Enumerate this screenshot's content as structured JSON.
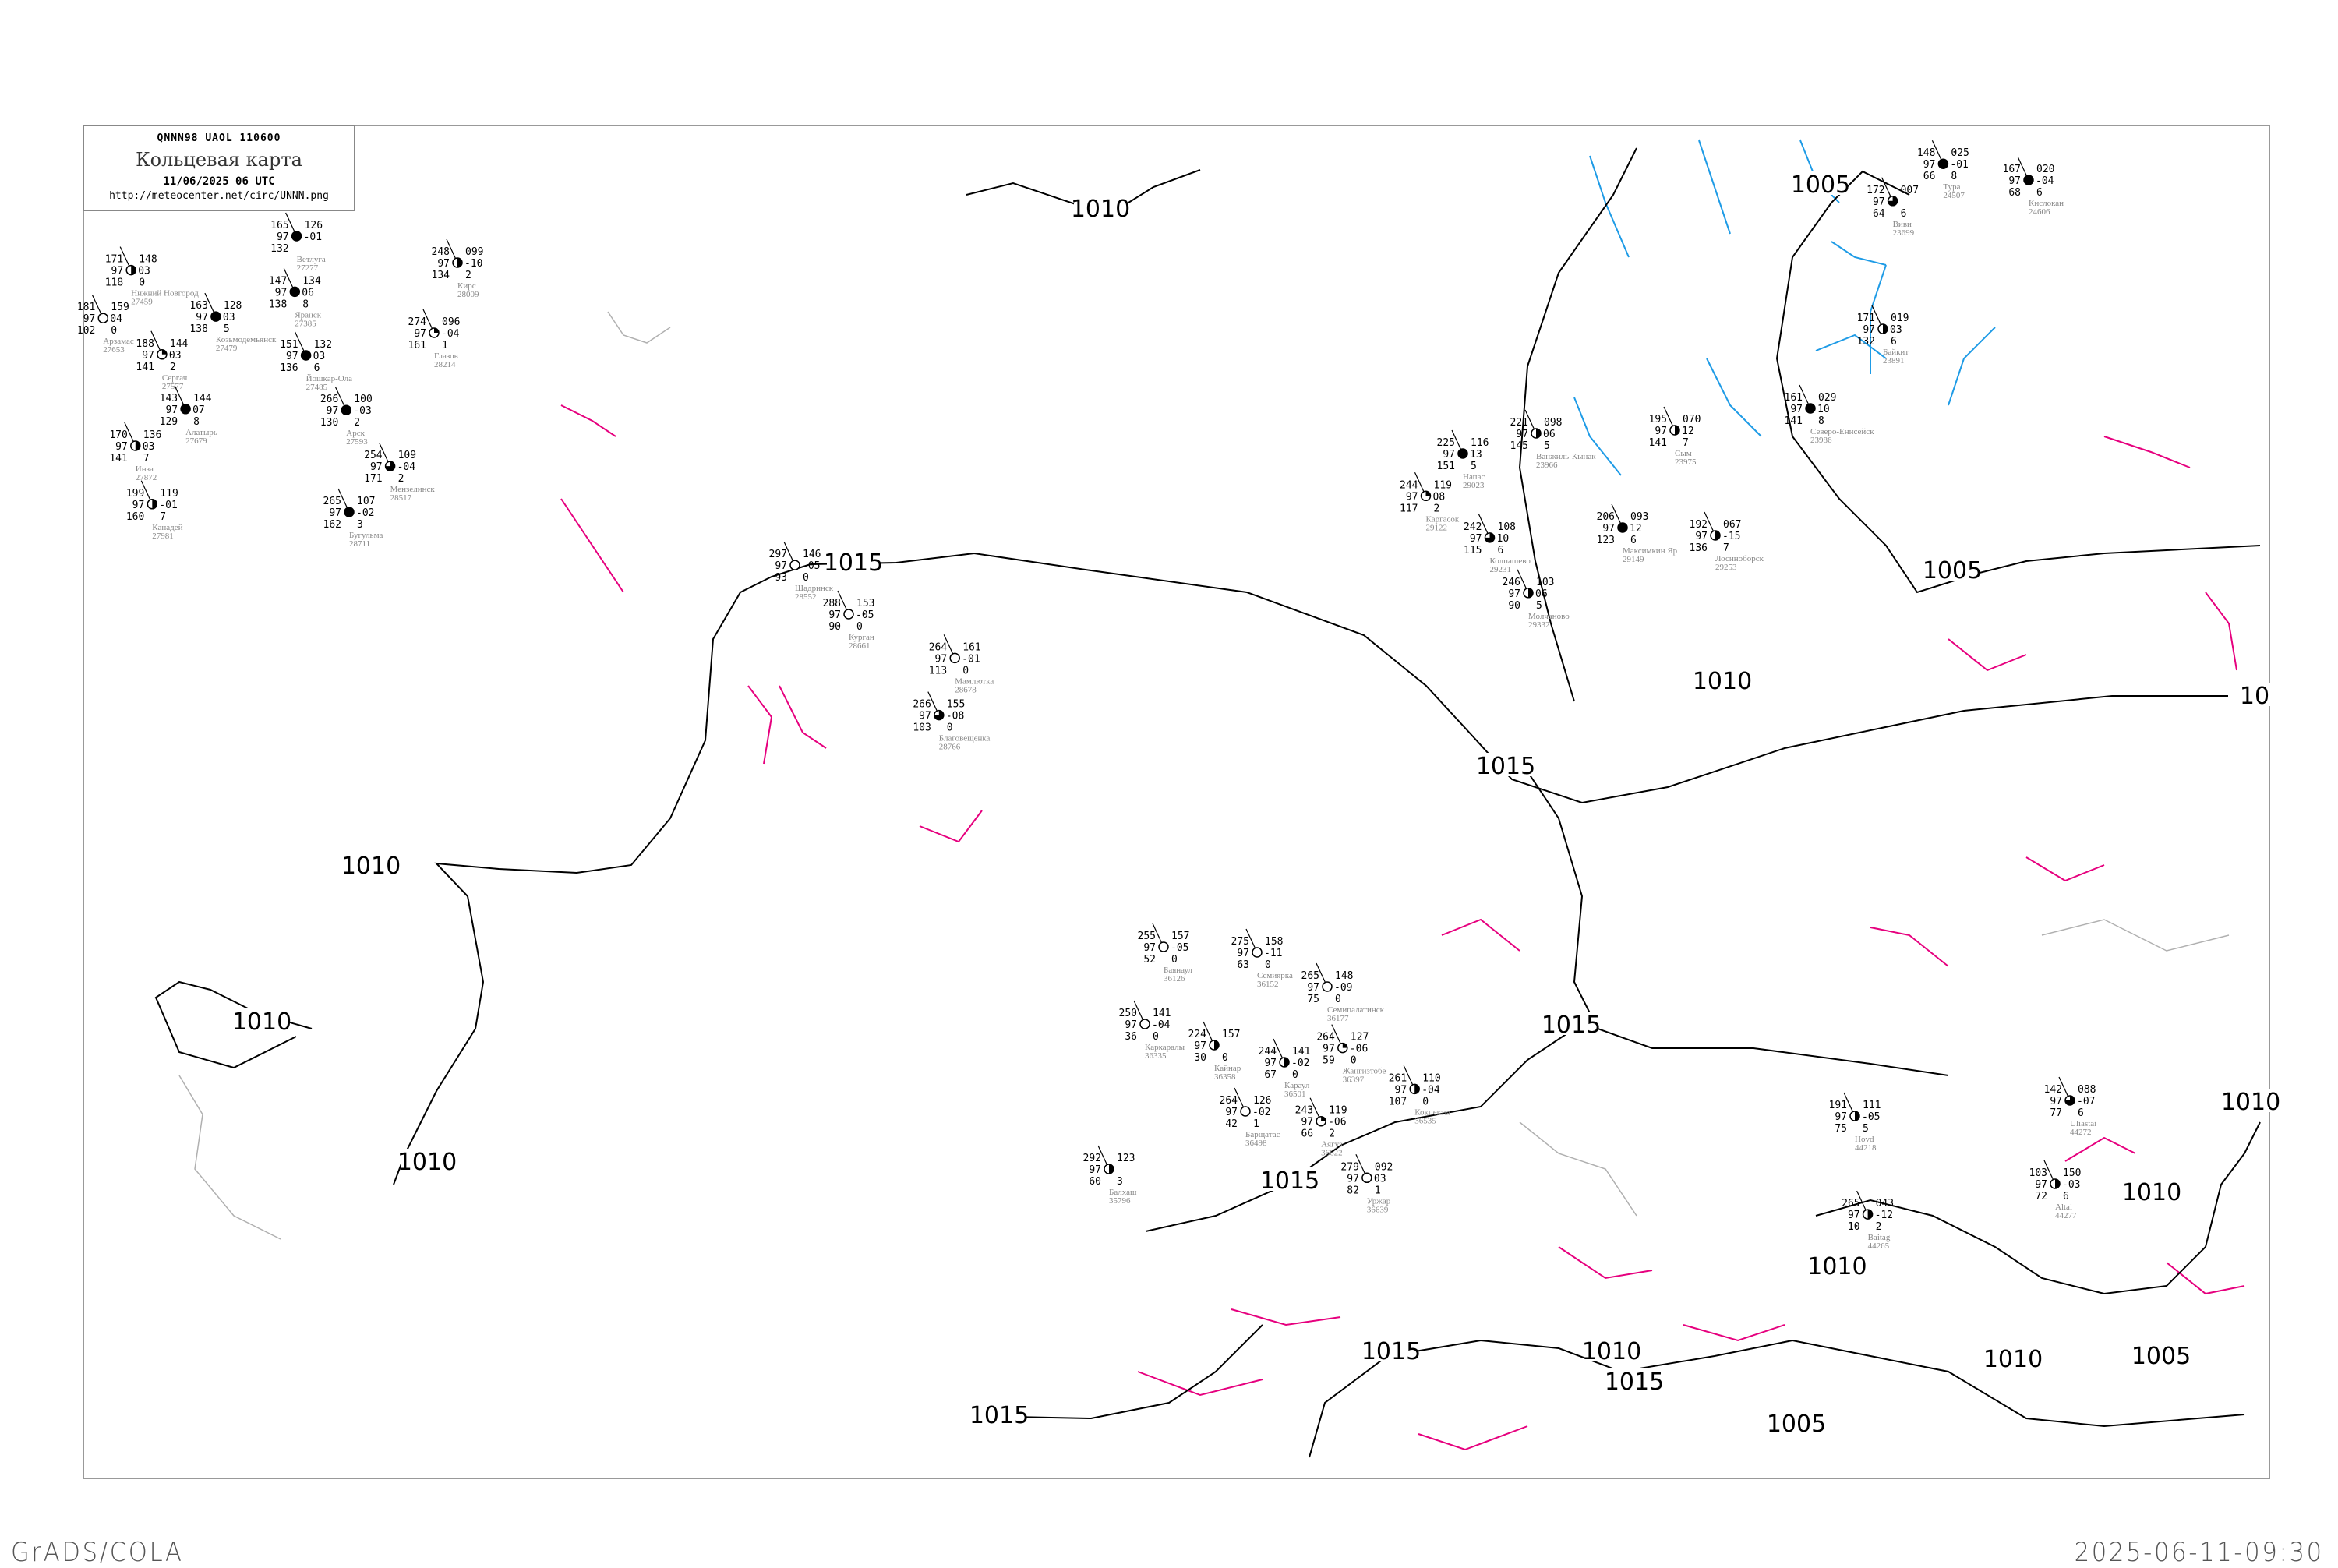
{
  "header": {
    "code": "QNNN98   UAOL   110600",
    "title": "Кольцевая карта",
    "datetime": "11/06/2025 06 UTC",
    "url": "http://meteocenter.net/circ/UNNN.png"
  },
  "footer": {
    "left": "GrADS/COLA",
    "right": "2025-06-11-09:30"
  },
  "colors": {
    "isobar": "#000000",
    "isallobar": "#e6007e",
    "front_blue": "#1e9be6",
    "coastline": "#b0b0b0",
    "station_name": "#888888",
    "precip_green": "#00c040",
    "precip_red": "#ff3366"
  },
  "isobar_labels": [
    "1010",
    "1005",
    "1015",
    "1010",
    "1010",
    "1010",
    "1015",
    "1015",
    "1015",
    "1015",
    "1010",
    "1015",
    "1005",
    "1010",
    "1010",
    "1005",
    "1010",
    "1010",
    "1005",
    "1010",
    "1015",
    "10"
  ],
  "stations": [
    {
      "name": "Шадринск",
      "id": "28552",
      "tl": "297",
      "ml": "97",
      "bl": "93",
      "tr": "146",
      "mr": "-05",
      "br": "0",
      "cover": 0
    },
    {
      "name": "Курган",
      "id": "28661",
      "tl": "288",
      "ml": "97",
      "bl": "90",
      "tr": "153",
      "mr": "-05",
      "br": "0",
      "cover": 0
    },
    {
      "name": "Мамлютка",
      "id": "28678",
      "tl": "264",
      "ml": "97",
      "bl": "113",
      "tr": "161",
      "mr": "-01",
      "br": "0",
      "cover": 0
    },
    {
      "name": "Благовещенка",
      "id": "28766",
      "tl": "266",
      "ml": "97",
      "bl": "103",
      "tr": "155",
      "mr": "-08",
      "br": "0",
      "cover": 0.75
    },
    {
      "name": "Тура",
      "id": "24507",
      "tl": "148",
      "ml": "97",
      "bl": "66",
      "tr": "025",
      "mr": "-01",
      "br": "8",
      "cover": 1
    },
    {
      "name": "Кислокан",
      "id": "24606",
      "tl": "167",
      "ml": "97",
      "bl": "68",
      "tr": "020",
      "mr": "-04",
      "br": "6",
      "cover": 1
    },
    {
      "name": "Виви",
      "id": "23699",
      "tl": "172",
      "ml": "97",
      "bl": "64",
      "tr": "007",
      "mr": "",
      "br": "6",
      "cover": 0.75
    },
    {
      "name": "Байкит",
      "id": "23891",
      "tl": "171",
      "ml": "97",
      "bl": "132",
      "tr": "019",
      "mr": "03",
      "br": "6",
      "cover": 0.5
    },
    {
      "name": "Северо-Енисейск",
      "id": "23986",
      "tl": "161",
      "ml": "97",
      "bl": "141",
      "tr": "029",
      "mr": "10",
      "br": "8",
      "cover": 1
    },
    {
      "name": "Ветлуга",
      "id": "27277",
      "tl": "165",
      "ml": "97",
      "bl": "132",
      "tr": "126",
      "mr": "-01",
      "br": "",
      "cover": 1
    },
    {
      "name": "Нижний Новгород",
      "id": "27459",
      "tl": "171",
      "ml": "97",
      "bl": "118",
      "tr": "148",
      "mr": "03",
      "br": "0",
      "cover": 0.5
    },
    {
      "name": "Арзамас",
      "id": "27653",
      "tl": "181",
      "ml": "97",
      "bl": "102",
      "tr": "159",
      "mr": "04",
      "br": "0",
      "cover": 0
    },
    {
      "name": "Сергач",
      "id": "27577",
      "tl": "188",
      "ml": "97",
      "bl": "141",
      "tr": "144",
      "mr": "03",
      "br": "2",
      "cover": 0.25
    },
    {
      "name": "Козьмодемьянск",
      "id": "27479",
      "tl": "163",
      "ml": "97",
      "bl": "138",
      "tr": "128",
      "mr": "03",
      "br": "5",
      "cover": 1
    },
    {
      "name": "Йошкар-Ола",
      "id": "27485",
      "tl": "151",
      "ml": "97",
      "bl": "136",
      "tr": "132",
      "mr": "03",
      "br": "6",
      "cover": 1
    },
    {
      "name": "Яранск",
      "id": "27385",
      "tl": "147",
      "ml": "97",
      "bl": "138",
      "tr": "134",
      "mr": "06",
      "br": "8",
      "cover": 1
    },
    {
      "name": "Алатырь",
      "id": "27679",
      "tl": "143",
      "ml": "97",
      "bl": "129",
      "tr": "144",
      "mr": "07",
      "br": "8",
      "cover": 1
    },
    {
      "name": "Инза",
      "id": "27872",
      "tl": "170",
      "ml": "97",
      "bl": "141",
      "tr": "136",
      "mr": "03",
      "br": "7",
      "cover": 0.5
    },
    {
      "name": "Канадей",
      "id": "27981",
      "tl": "199",
      "ml": "97",
      "bl": "160",
      "tr": "119",
      "mr": "-01",
      "br": "7",
      "cover": 0.5
    },
    {
      "name": "Глазов",
      "id": "28214",
      "tl": "274",
      "ml": "97",
      "bl": "161",
      "tr": "096",
      "mr": "-04",
      "br": "1",
      "cover": 0.25
    },
    {
      "name": "Кирс",
      "id": "28009",
      "tl": "248",
      "ml": "97",
      "bl": "134",
      "tr": "099",
      "mr": "-10",
      "br": "2",
      "cover": 0.5
    },
    {
      "name": "Мензелинск",
      "id": "28517",
      "tl": "254",
      "ml": "97",
      "bl": "171",
      "tr": "109",
      "mr": "-04",
      "br": "2",
      "cover": 0.75
    },
    {
      "name": "Бугульма",
      "id": "28711",
      "tl": "265",
      "ml": "97",
      "bl": "162",
      "tr": "107",
      "mr": "-02",
      "br": "3",
      "cover": 1
    },
    {
      "name": "Арск",
      "id": "27593",
      "tl": "266",
      "ml": "97",
      "bl": "130",
      "tr": "100",
      "mr": "-03",
      "br": "2",
      "cover": 1
    },
    {
      "name": "Напас",
      "id": "29023",
      "tl": "225",
      "ml": "97",
      "bl": "151",
      "tr": "116",
      "mr": "13",
      "br": "5",
      "cover": 1
    },
    {
      "name": "Ванжиль-Кынак",
      "id": "23966",
      "tl": "221",
      "ml": "97",
      "bl": "145",
      "tr": "098",
      "mr": "06",
      "br": "5",
      "cover": 0.5
    },
    {
      "name": "Каргасок",
      "id": "29122",
      "tl": "244",
      "ml": "97",
      "bl": "117",
      "tr": "119",
      "mr": "08",
      "br": "2",
      "cover": 0.25
    },
    {
      "name": "Колпашево",
      "id": "29231",
      "tl": "242",
      "ml": "97",
      "bl": "115",
      "tr": "108",
      "mr": "10",
      "br": "6",
      "cover": 0.75
    },
    {
      "name": "Молчаново",
      "id": "29332",
      "tl": "246",
      "ml": "97",
      "bl": "90",
      "tr": "103",
      "mr": "06",
      "br": "5",
      "cover": 0.5
    },
    {
      "name": "Сым",
      "id": "23975",
      "tl": "195",
      "ml": "97",
      "bl": "141",
      "tr": "070",
      "mr": "12",
      "br": "7",
      "cover": 0.5
    },
    {
      "name": "Максимкин Яр",
      "id": "29149",
      "tl": "206",
      "ml": "97",
      "bl": "123",
      "tr": "093",
      "mr": "12",
      "br": "6",
      "cover": 1
    },
    {
      "name": "Лосиноборск",
      "id": "29253",
      "tl": "192",
      "ml": "97",
      "bl": "136",
      "tr": "067",
      "mr": "-15",
      "br": "7",
      "cover": 0.5
    },
    {
      "name": "Баянаул",
      "id": "36126",
      "tl": "255",
      "ml": "97",
      "bl": "52",
      "tr": "157",
      "mr": "-05",
      "br": "0",
      "cover": 0
    },
    {
      "name": "Семиярка",
      "id": "36152",
      "tl": "275",
      "ml": "97",
      "bl": "63",
      "tr": "158",
      "mr": "-11",
      "br": "0",
      "cover": 0
    },
    {
      "name": "Каркаралы",
      "id": "36335",
      "tl": "250",
      "ml": "97",
      "bl": "36",
      "tr": "141",
      "mr": "-04",
      "br": "0",
      "cover": 0
    },
    {
      "name": "Кайнар",
      "id": "36358",
      "tl": "224",
      "ml": "97",
      "bl": "30",
      "tr": "157",
      "mr": "",
      "br": "0",
      "cover": 0.5
    },
    {
      "name": "Караул",
      "id": "36501",
      "tl": "244",
      "ml": "97",
      "bl": "67",
      "tr": "141",
      "mr": "-02",
      "br": "0",
      "cover": 0.5
    },
    {
      "name": "Семипалатинск",
      "id": "36177",
      "tl": "265",
      "ml": "97",
      "bl": "75",
      "tr": "148",
      "mr": "-09",
      "br": "0",
      "cover": 0
    },
    {
      "name": "Жангизтобе",
      "id": "36397",
      "tl": "264",
      "ml": "97",
      "bl": "59",
      "tr": "127",
      "mr": "-06",
      "br": "0",
      "cover": 0.25
    },
    {
      "name": "Барщатас",
      "id": "36498",
      "tl": "264",
      "ml": "97",
      "bl": "42",
      "tr": "126",
      "mr": "-02",
      "br": "1",
      "cover": 0
    },
    {
      "name": "Аягуз",
      "id": "36622",
      "tl": "243",
      "ml": "97",
      "bl": "66",
      "tr": "119",
      "mr": "-06",
      "br": "2",
      "cover": 0.25
    },
    {
      "name": "Уржар",
      "id": "36639",
      "tl": "279",
      "ml": "97",
      "bl": "82",
      "tr": "092",
      "mr": "03",
      "br": "1",
      "cover": 0
    },
    {
      "name": "Балхаш",
      "id": "35796",
      "tl": "292",
      "ml": "97",
      "bl": "60",
      "tr": "123",
      "mr": "",
      "br": "3",
      "cover": 0.5
    },
    {
      "name": "Кокпекты",
      "id": "36535",
      "tl": "261",
      "ml": "97",
      "bl": "107",
      "tr": "110",
      "mr": "-04",
      "br": "0",
      "cover": 0.5
    },
    {
      "name": "Uliastai",
      "id": "44272",
      "tl": "142",
      "ml": "97",
      "bl": "77",
      "tr": "088",
      "mr": "-07",
      "br": "6",
      "cover": 0.75
    },
    {
      "name": "Altai",
      "id": "44277",
      "tl": "103",
      "ml": "97",
      "bl": "72",
      "tr": "150",
      "mr": "-03",
      "br": "6",
      "cover": 0.5
    },
    {
      "name": "Hovd",
      "id": "44218",
      "tl": "191",
      "ml": "97",
      "bl": "75",
      "tr": "111",
      "mr": "-05",
      "br": "5",
      "cover": 0.5
    },
    {
      "name": "Baitag",
      "id": "44265",
      "tl": "265",
      "ml": "97",
      "bl": "10",
      "tr": "043",
      "mr": "-12",
      "br": "2",
      "cover": 0.5
    }
  ]
}
